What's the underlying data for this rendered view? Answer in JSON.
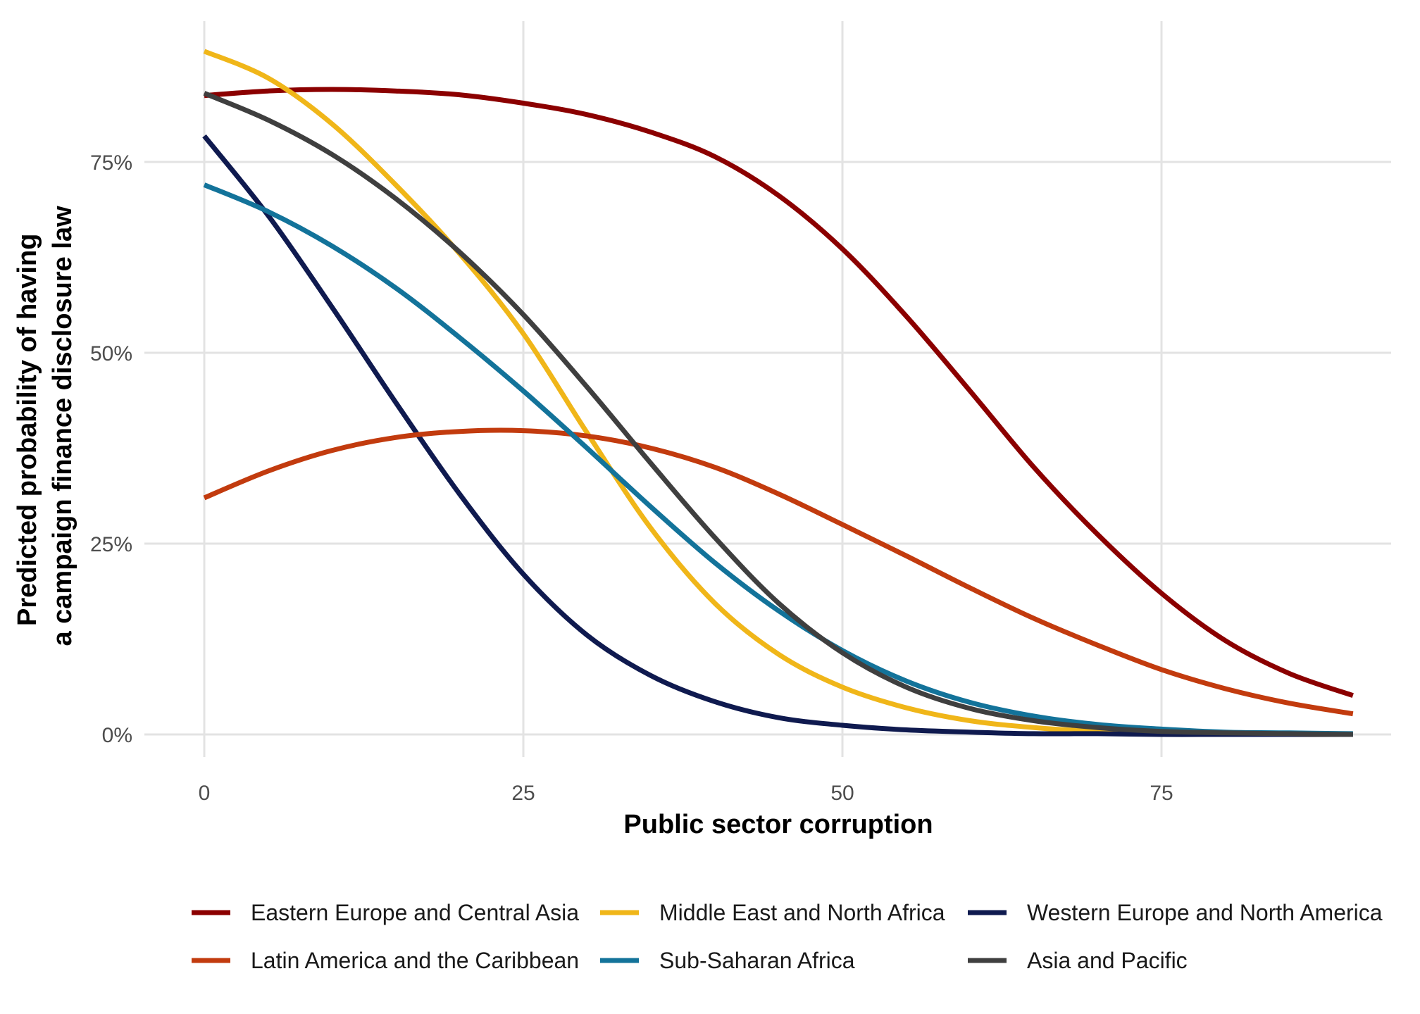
{
  "chart_data": {
    "type": "line",
    "xlabel": "Public sector corruption",
    "ylabel_lines": [
      "Predicted probability of having",
      "a campaign finance disclosure law"
    ],
    "xlim": [
      0,
      90
    ],
    "ylim": [
      0,
      0.9
    ],
    "x_ticks": [
      0,
      25,
      50,
      75
    ],
    "x_tick_labels": [
      "0",
      "25",
      "50",
      "75"
    ],
    "y_ticks": [
      0,
      0.25,
      0.5,
      0.75
    ],
    "y_tick_labels": [
      "0%",
      "25%",
      "50%",
      "75%"
    ],
    "grid": true,
    "legend_position": "bottom",
    "x": [
      0,
      5,
      10,
      15,
      20,
      25,
      30,
      35,
      40,
      45,
      50,
      55,
      60,
      65,
      70,
      75,
      80,
      85,
      90
    ],
    "series": [
      {
        "name": "Eastern Europe and Central Asia",
        "color": "#8b0000",
        "values": [
          0.837,
          0.843,
          0.845,
          0.843,
          0.838,
          0.827,
          0.812,
          0.789,
          0.757,
          0.706,
          0.636,
          0.548,
          0.45,
          0.35,
          0.262,
          0.185,
          0.123,
          0.08,
          0.051
        ]
      },
      {
        "name": "Middle East and North Africa",
        "color": "#f0b619",
        "values": [
          0.895,
          0.86,
          0.8,
          0.72,
          0.63,
          0.525,
          0.395,
          0.27,
          0.172,
          0.105,
          0.062,
          0.035,
          0.018,
          0.009,
          0.004,
          0.002,
          0.001,
          0.0,
          0.0
        ]
      },
      {
        "name": "Western Europe and North America",
        "color": "#0f1a4f",
        "values": [
          0.784,
          0.68,
          0.56,
          0.435,
          0.315,
          0.21,
          0.13,
          0.077,
          0.043,
          0.022,
          0.012,
          0.006,
          0.003,
          0.001,
          0.001,
          0.0,
          0.0,
          0.0,
          0.0
        ]
      },
      {
        "name": "Latin America and the Caribbean",
        "color": "#c23b0e",
        "values": [
          0.31,
          0.345,
          0.372,
          0.389,
          0.397,
          0.398,
          0.391,
          0.375,
          0.35,
          0.315,
          0.275,
          0.234,
          0.192,
          0.152,
          0.117,
          0.085,
          0.06,
          0.041,
          0.027
        ]
      },
      {
        "name": "Sub-Saharan Africa",
        "color": "#13739a",
        "values": [
          0.72,
          0.685,
          0.64,
          0.585,
          0.52,
          0.45,
          0.375,
          0.298,
          0.225,
          0.162,
          0.11,
          0.07,
          0.042,
          0.024,
          0.013,
          0.007,
          0.003,
          0.002,
          0.001
        ]
      },
      {
        "name": "Asia and Pacific",
        "color": "#3f3f3f",
        "values": [
          0.84,
          0.805,
          0.76,
          0.702,
          0.632,
          0.55,
          0.455,
          0.355,
          0.258,
          0.172,
          0.107,
          0.062,
          0.034,
          0.018,
          0.009,
          0.004,
          0.002,
          0.001,
          0.0
        ]
      }
    ],
    "legend_order": [
      [
        "Eastern Europe and Central Asia",
        "Middle East and North Africa",
        "Western Europe and North America"
      ],
      [
        "Latin America and the Caribbean",
        "Sub-Saharan Africa",
        "Asia and Pacific"
      ]
    ],
    "colors": {
      "grid": "#e3e3e3",
      "tick_text": "#4d4d4d",
      "title_text": "#000000"
    }
  }
}
